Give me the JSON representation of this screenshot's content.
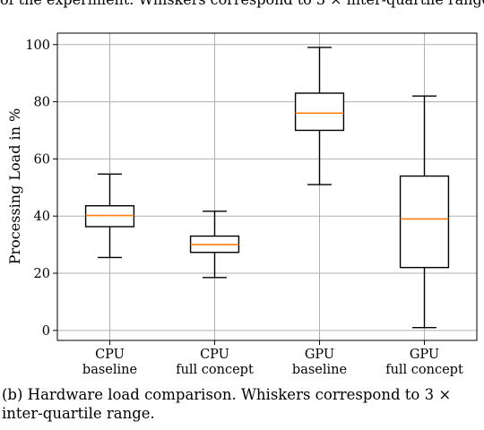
{
  "top_partial_text": "of the experiment. Whiskers correspond to 3 × inter-quartile range.",
  "caption": {
    "line1": "(b) Hardware load comparison. Whiskers correspond to 3 ×",
    "line2": "inter-quartile range."
  },
  "colors": {
    "median": "#ff7f0e",
    "grid": "#b0b0b0",
    "box": "#000000"
  },
  "chart_data": {
    "type": "box",
    "title": "",
    "xlabel": "",
    "ylabel": "Processing Load in %",
    "ylim": [
      -3.5,
      104
    ],
    "yticks": [
      0,
      20,
      40,
      60,
      80,
      100
    ],
    "grid": true,
    "categories": [
      {
        "line1": "CPU",
        "line2": "baseline"
      },
      {
        "line1": "CPU",
        "line2": "full concept"
      },
      {
        "line1": "GPU",
        "line2": "baseline"
      },
      {
        "line1": "GPU",
        "line2": "full concept"
      }
    ],
    "boxes": [
      {
        "whislo": 25.5,
        "q1": 36.3,
        "med": 40.2,
        "q3": 43.6,
        "whishi": 54.7
      },
      {
        "whislo": 18.5,
        "q1": 27.3,
        "med": 30.0,
        "q3": 33.0,
        "whishi": 41.7
      },
      {
        "whislo": 51.0,
        "q1": 70.0,
        "med": 76.0,
        "q3": 83.0,
        "whishi": 99.0
      },
      {
        "whislo": 1.0,
        "q1": 22.0,
        "med": 39.0,
        "q3": 54.0,
        "whishi": 82.0
      }
    ]
  }
}
